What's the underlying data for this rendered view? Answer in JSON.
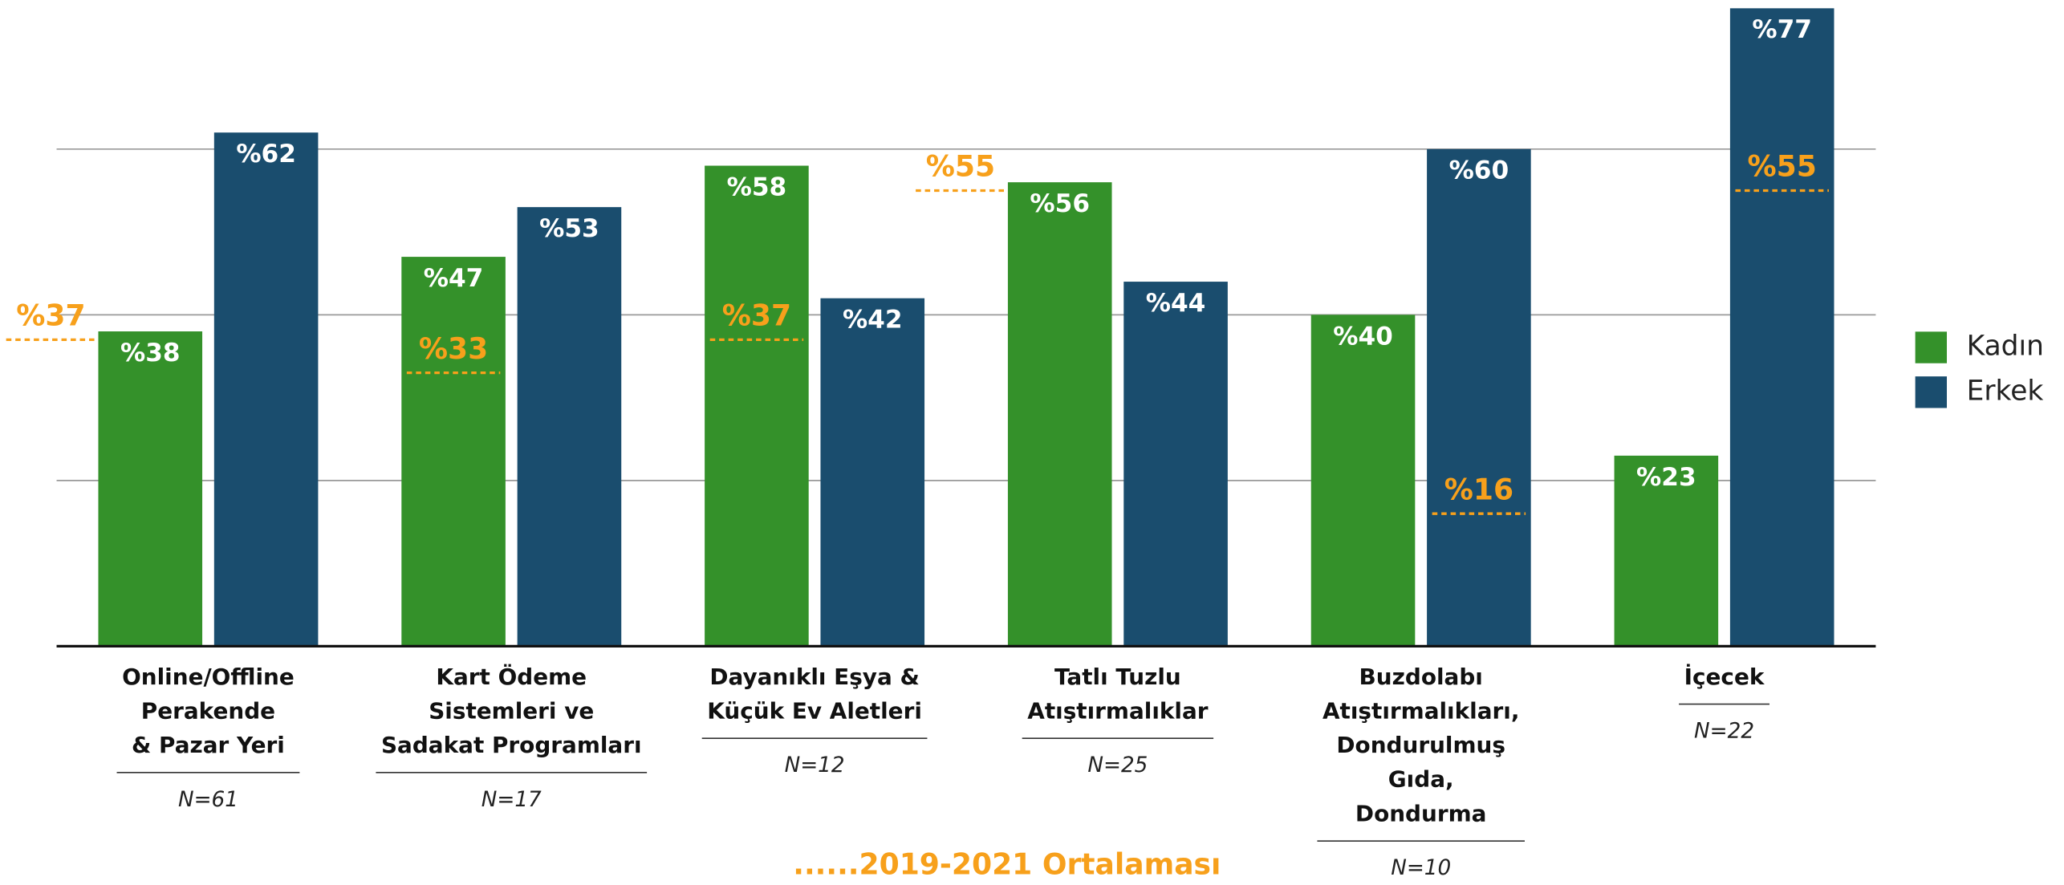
{
  "chart_data": {
    "type": "bar",
    "categories": [
      [
        "Online/Offline",
        "Perakende",
        "& Pazar Yeri"
      ],
      [
        "Kart Ödeme",
        "Sistemleri ve",
        "Sadakat Programları"
      ],
      [
        "Dayanıklı Eşya &",
        "Küçük Ev Aletleri"
      ],
      [
        "Tatlı Tuzlu",
        "Atıştırmalıklar"
      ],
      [
        "Buzdolabı",
        "Atıştırmalıkları,",
        "Dondurulmuş",
        "Gıda,",
        "Dondurma"
      ],
      [
        "İçecek"
      ]
    ],
    "n_labels": [
      "N=61",
      "N=17",
      "N=12",
      "N=25",
      "N=10",
      "N=22"
    ],
    "series": [
      {
        "name": "Kadın",
        "color": "#34912a",
        "values": [
          38,
          47,
          58,
          56,
          40,
          23
        ],
        "value_labels": [
          "%38",
          "%47",
          "%58",
          "%56",
          "%40",
          "%23"
        ]
      },
      {
        "name": "Erkek",
        "color": "#1a4d6e",
        "values": [
          62,
          53,
          42,
          44,
          60,
          77
        ],
        "value_labels": [
          "%62",
          "%53",
          "%42",
          "%44",
          "%60",
          "%77"
        ]
      }
    ],
    "averages": {
      "name": "......2019-2021 Ortalaması",
      "color": "#f7a01b",
      "values": [
        37,
        33,
        37,
        55,
        16,
        55
      ],
      "value_labels": [
        "%37",
        "%33",
        "%37",
        "%55",
        "%16",
        "%55"
      ]
    },
    "ylim": [
      0,
      78
    ],
    "yticks": [
      20,
      40,
      60
    ],
    "grid": true,
    "legend": "right"
  }
}
